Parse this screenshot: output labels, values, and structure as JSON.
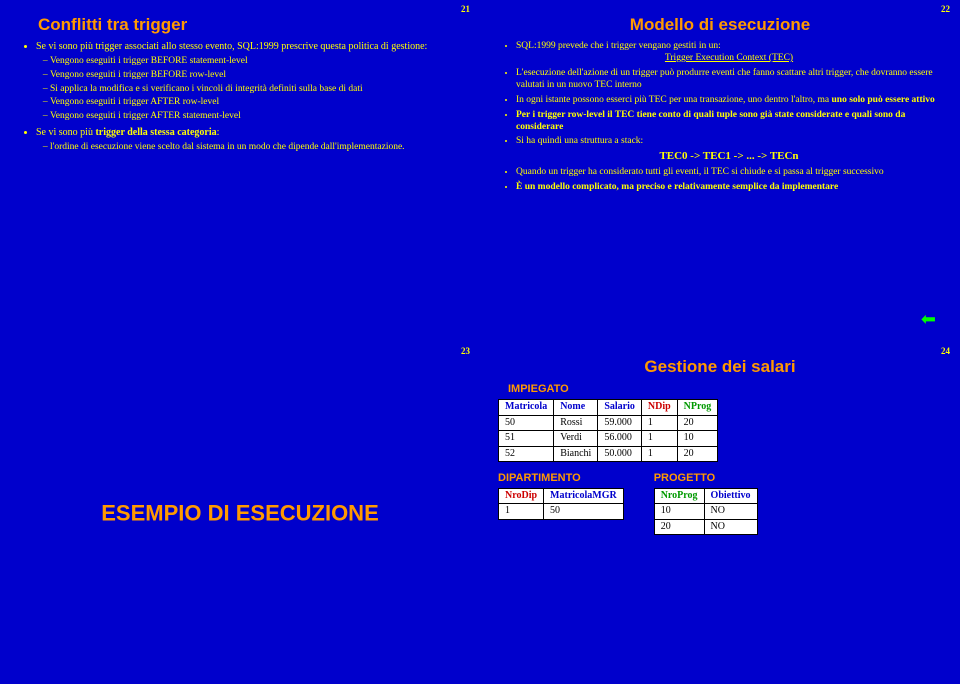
{
  "slide21": {
    "num": "21",
    "title": "Conflitti tra trigger",
    "b1": "Se vi sono più trigger associati allo stesso evento, SQL:1999 prescrive questa politica di gestione:",
    "s1": "Vengono eseguiti i trigger BEFORE statement-level",
    "s2": "Vengono eseguiti i trigger BEFORE row-level",
    "s3": "Si applica la modifica e si verificano i vincoli di integrità definiti sulla base di dati",
    "s4": "Vengono eseguiti i trigger AFTER row-level",
    "s5": "Vengono eseguiti i trigger AFTER statement-level",
    "b2a": "Se vi sono più ",
    "b2b": "trigger della stessa categoria",
    "b2c": ":",
    "s6": "l'ordine di esecuzione viene scelto dal sistema in un modo che dipende dall'implementazione."
  },
  "slide22": {
    "num": "22",
    "title": "Modello di esecuzione",
    "b1": "SQL:1999 prevede che i trigger vengano gestiti in un:",
    "tec": "Trigger Execution Context (TEC)",
    "b2": "L'esecuzione dell'azione di un trigger può produrre eventi che fanno scattare altri trigger, che dovranno essere valutati in un nuovo TEC interno",
    "b3a": "In ogni istante possono esserci più TEC per una transazione, uno dentro l'altro, ma ",
    "b3b": "uno solo può essere attivo",
    "b4a": "Per i trigger row-level il TEC tiene conto di quali tuple sono già state considerate e quali sono da considerare",
    "b5": "Si ha quindi una struttura a stack:",
    "chain": "TEC0 -> TEC1 -> ... -> TECn",
    "b6": "Quando un trigger ha considerato tutti gli eventi, il TEC si chiude e si passa al trigger successivo",
    "b7": "È un modello complicato, ma preciso e relativamente semplice da implementare"
  },
  "slide23": {
    "num": "23",
    "title": "ESEMPIO DI ESECUZIONE"
  },
  "slide24": {
    "num": "24",
    "title": "Gestione dei salari",
    "imp_label": "IMPIEGATO",
    "imp_h1": "Matricola",
    "imp_h2": "Nome",
    "imp_h3": "Salario",
    "imp_h4": "NDip",
    "imp_h5": "NProg",
    "r1c1": "50",
    "r1c2": "Rossi",
    "r1c3": "59.000",
    "r1c4": "1",
    "r1c5": "20",
    "r2c1": "51",
    "r2c2": "Verdi",
    "r2c3": "56.000",
    "r2c4": "1",
    "r2c5": "10",
    "r3c1": "52",
    "r3c2": "Bianchi",
    "r3c3": "50.000",
    "r3c4": "1",
    "r3c5": "20",
    "dip_label": "DIPARTIMENTO",
    "dip_h1": "NroDip",
    "dip_h2": "MatricolaMGR",
    "d1c1": "1",
    "d1c2": "50",
    "prog_label": "PROGETTO",
    "prog_h1": "NroProg",
    "prog_h2": "Obiettivo",
    "p1c1": "10",
    "p1c2": "NO",
    "p2c1": "20",
    "p2c2": "NO"
  }
}
